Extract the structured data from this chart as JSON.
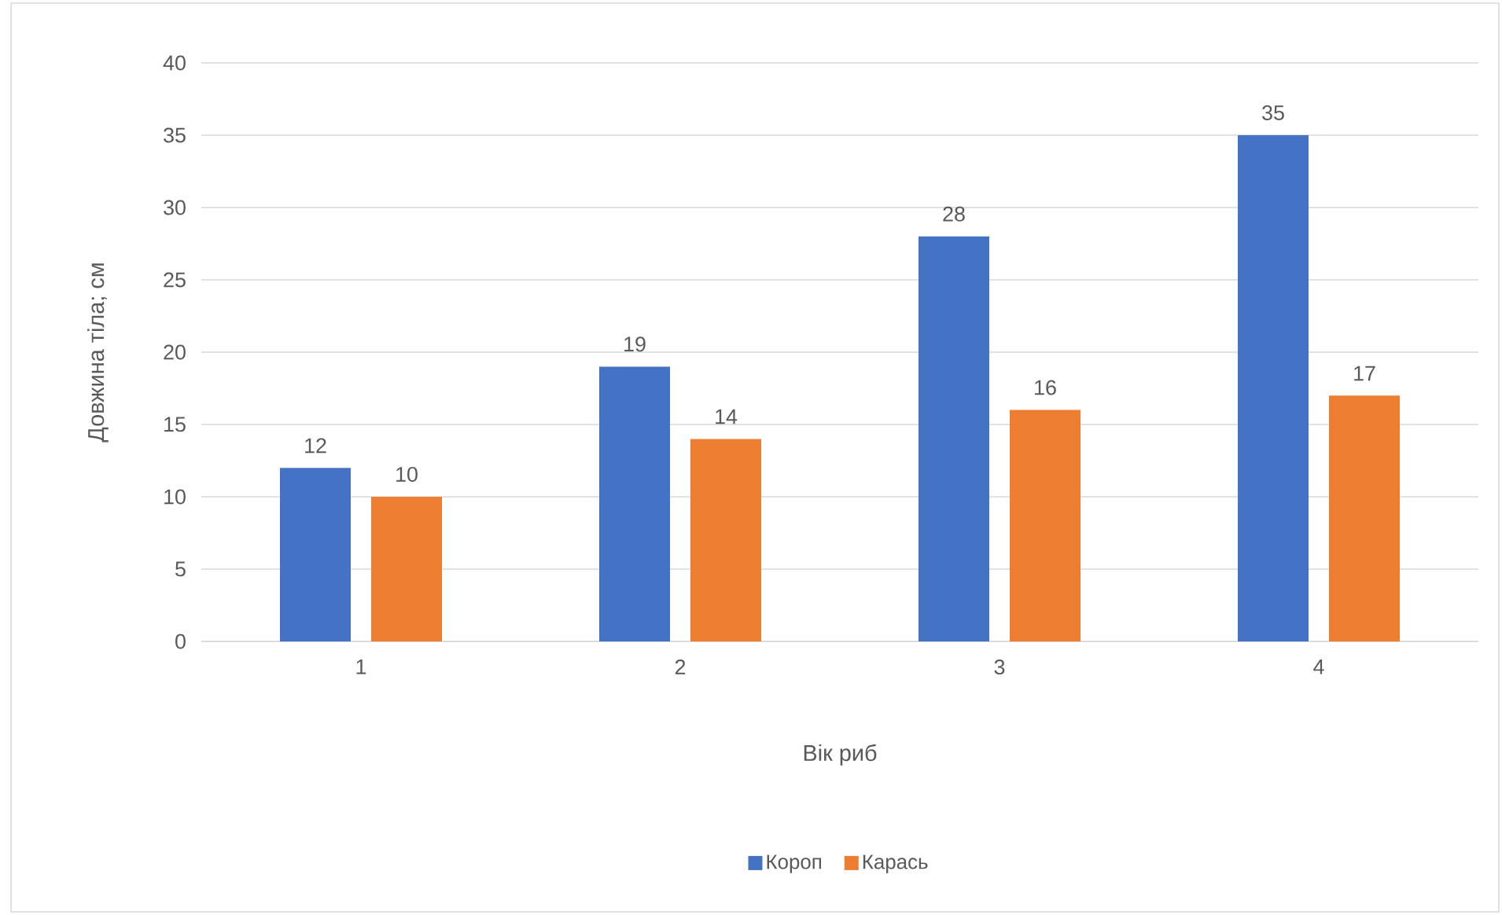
{
  "chart_data": {
    "type": "bar",
    "xlabel": "Вік риб",
    "ylabel": "Довжина тіла; см",
    "categories": [
      "1",
      "2",
      "3",
      "4"
    ],
    "series": [
      {
        "name": "Короп",
        "color": "#4472c4",
        "values": [
          12,
          19,
          28,
          35
        ]
      },
      {
        "name": "Карась",
        "color": "#ed7d31",
        "values": [
          10,
          14,
          16,
          17
        ]
      }
    ],
    "ylim": [
      0,
      40
    ],
    "yticks": [
      0,
      5,
      10,
      15,
      20,
      25,
      30,
      35,
      40
    ],
    "grid": "y",
    "legend": "bottom",
    "data_labels": true
  }
}
